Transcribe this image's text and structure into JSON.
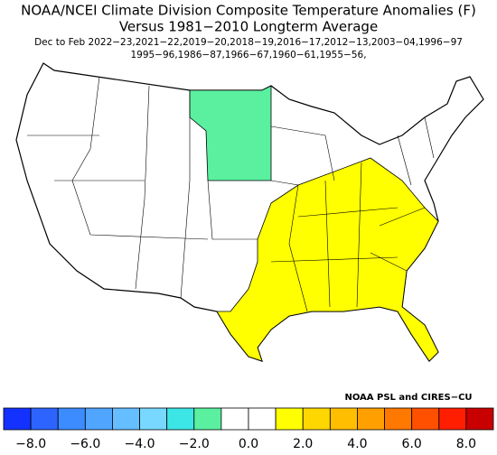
{
  "title": "NOAA/NCEI Climate Division Composite Temperature Anomalies (F)",
  "subtitle": "Versus 1981−2010 Longterm Average",
  "period_line_1": "Dec to Feb  2022−23,2021−22,2019−20,2018−19,2016−17,2012−13,2003−04,1996−97",
  "period_line_2": "1995−96,1986−87,1966−67,1960−61,1955−56,",
  "credit": "NOAA PSL and CIRES−CU",
  "colorbar": {
    "colors": [
      "#1432ff",
      "#2d64ff",
      "#3c8cff",
      "#50a5ff",
      "#64beff",
      "#78d8ff",
      "#3ce6e6",
      "#5af0a0",
      "#ffffff",
      "#ffffff",
      "#ffff00",
      "#ffd700",
      "#ffbe00",
      "#ffa000",
      "#ff7800",
      "#ff5000",
      "#ff1e00",
      "#c80000"
    ],
    "labels": [
      "−8.0",
      "−6.0",
      "−4.0",
      "−2.0",
      "0.0",
      "2.0",
      "4.0",
      "6.0",
      "8.0"
    ]
  }
}
